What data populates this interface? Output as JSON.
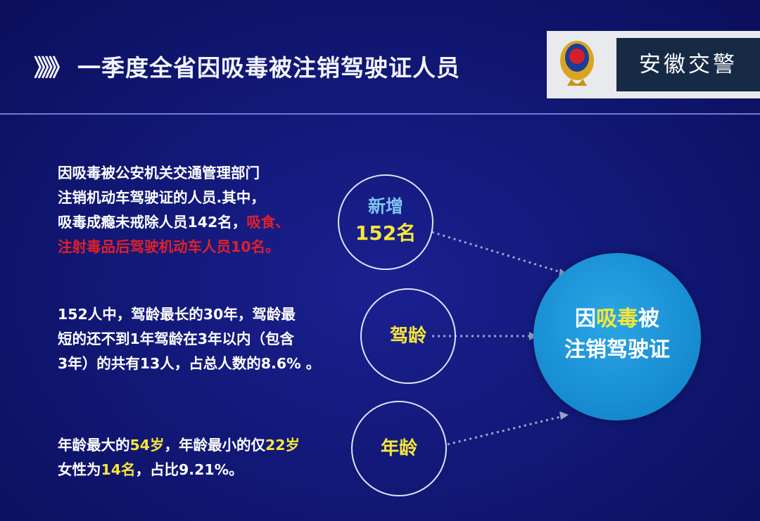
{
  "header": {
    "title_prefix": "》》》",
    "title": "一季度全省因吸毒被注销驾驶证人员",
    "badge_text": "安徽交警",
    "emblem_icon": "police-emblem"
  },
  "colors": {
    "background": "#111773",
    "center_circle": "#1a8fd6",
    "highlight_yellow": "#f5e63a",
    "highlight_red": "#e0202a"
  },
  "center": {
    "line1_a": "因",
    "line1_hl": "吸毒",
    "line1_b": "被",
    "line2": "注销驾驶证"
  },
  "items": [
    {
      "circle_label": "新增",
      "circle_value": "152名",
      "lines": [
        "因吸毒被公安机关交通管理部门",
        "注销机动车驾驶证的人员.其中，"
      ],
      "line3_a": "吸毒成瘾未戒除人员142名，",
      "line3_red": "吸食、",
      "line4_red": "注射毒品后驾驶机动车人员10名。"
    },
    {
      "circle_label": "驾龄",
      "lines": [
        "152人中，驾龄最长的30年，驾龄最",
        "短的还不到1年驾龄在3年以内（包含",
        "3年）的共有13人，占总人数的8.6% 。"
      ]
    },
    {
      "circle_label": "年龄",
      "l1_a": "年龄最大的",
      "l1_b": "54岁",
      "l1_c": "，年龄最小的仅",
      "l1_d": "22岁",
      "l2_a": "女性为",
      "l2_b": "14名",
      "l2_c": "，占比9.21%。"
    }
  ]
}
